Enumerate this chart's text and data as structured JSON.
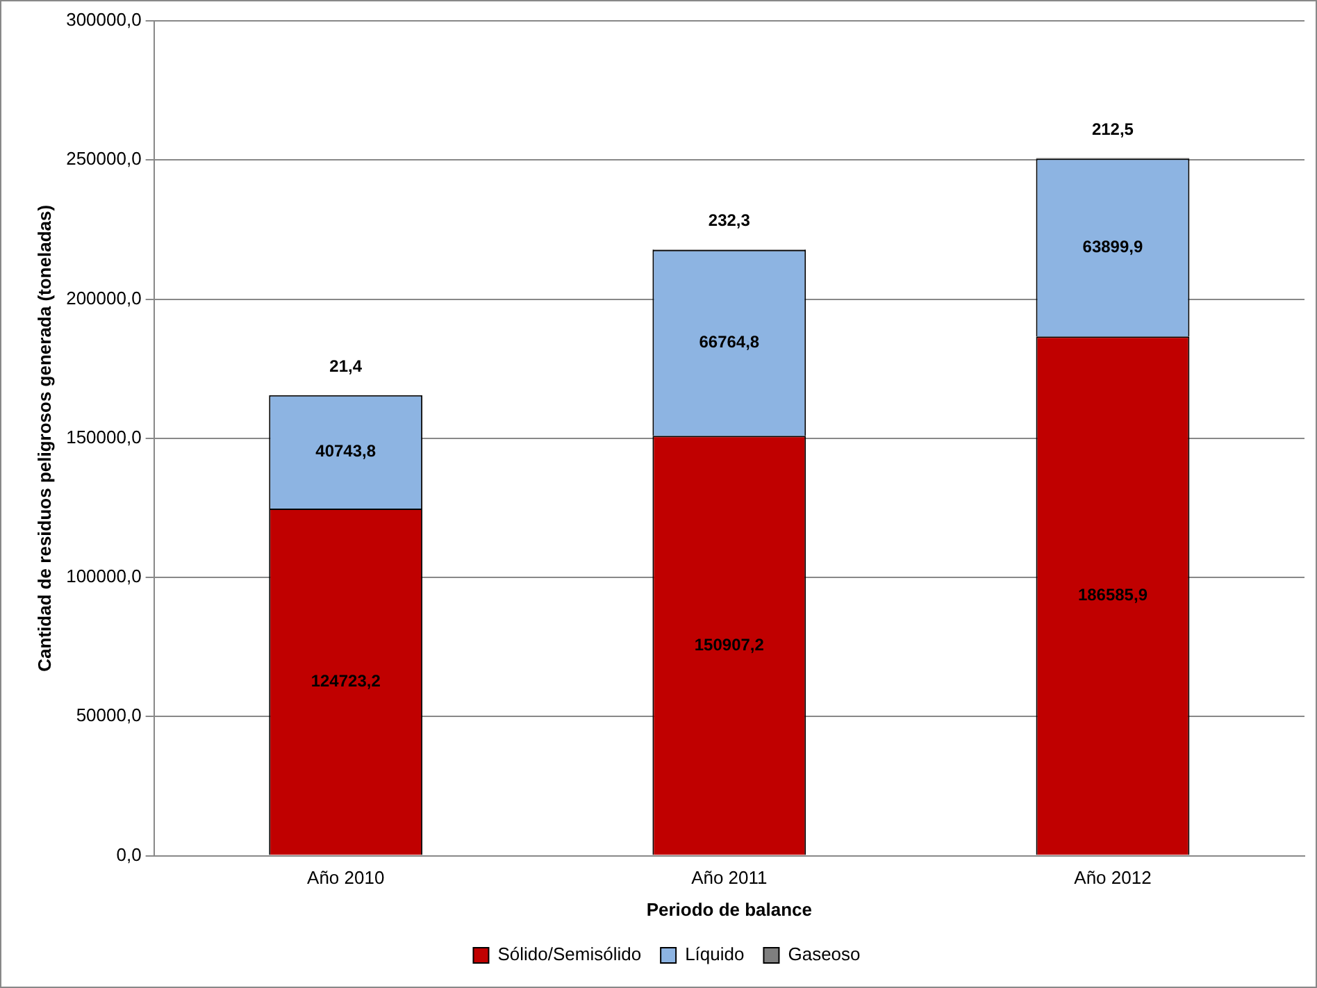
{
  "chart_data": {
    "type": "bar",
    "stacked": true,
    "xlabel": "Periodo de balance",
    "ylabel": "Cantidad de residuos peligrosos generada (toneladas)",
    "categories": [
      "Año 2010",
      "Año 2011",
      "Año 2012"
    ],
    "series": [
      {
        "name": "Sólido/Semisólido",
        "color": "#c00000",
        "values": [
          124723.2,
          150907.2,
          186585.9
        ],
        "value_labels": [
          "124723,2",
          "150907,2",
          "186585,9"
        ]
      },
      {
        "name": "Líquido",
        "color": "#8db4e2",
        "values": [
          40743.8,
          66764.8,
          63899.9
        ],
        "value_labels": [
          "40743,8",
          "66764,8",
          "63899,9"
        ]
      },
      {
        "name": "Gaseoso",
        "color": "#7f7f7f",
        "values": [
          21.4,
          232.3,
          212.5
        ],
        "value_labels": [
          "21,4",
          "232,3",
          "212,5"
        ]
      }
    ],
    "ylim": [
      0,
      300000
    ],
    "yticks": [
      {
        "value": 0,
        "label": "0,0"
      },
      {
        "value": 50000,
        "label": "50000,0"
      },
      {
        "value": 100000,
        "label": "100000,0"
      },
      {
        "value": 150000,
        "label": "150000,0"
      },
      {
        "value": 200000,
        "label": "200000,0"
      },
      {
        "value": 250000,
        "label": "250000,0"
      },
      {
        "value": 300000,
        "label": "300000,0"
      }
    ],
    "grid": "y",
    "legend": "bottom"
  }
}
